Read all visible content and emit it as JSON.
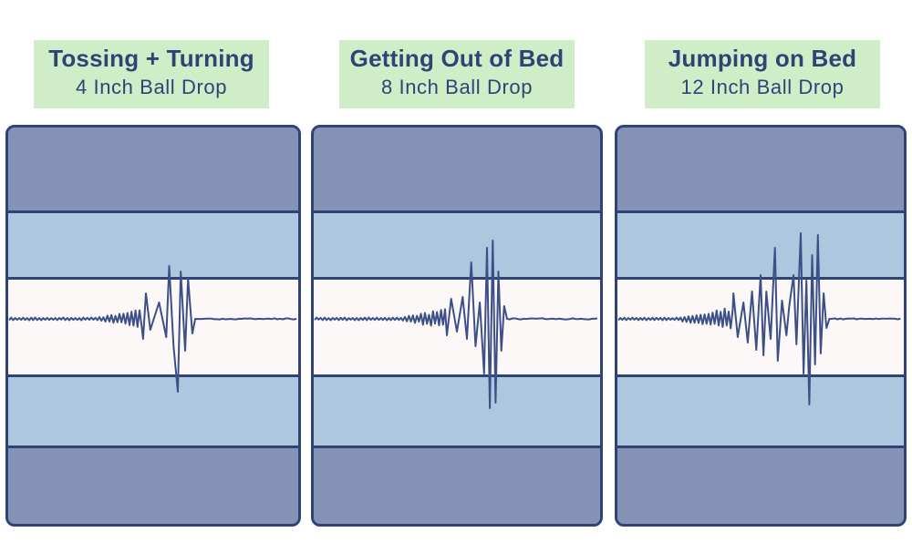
{
  "panels": [
    {
      "title": "Tossing + Turning",
      "subtitle": "4 Inch Ball Drop",
      "wave": {
        "noise_amp": 1.5,
        "ramp_start": 0.3,
        "ramp_end": 0.46,
        "ramp_amp": 9,
        "spikes": [
          {
            "pos": 0.465,
            "amp": -22
          },
          {
            "pos": 0.475,
            "amp": 28
          },
          {
            "pos": 0.49,
            "amp": -12
          },
          {
            "pos": 0.52,
            "amp": 18
          },
          {
            "pos": 0.545,
            "amp": -20
          },
          {
            "pos": 0.555,
            "amp": 58
          },
          {
            "pos": 0.57,
            "amp": -30
          },
          {
            "pos": 0.585,
            "amp": -80
          },
          {
            "pos": 0.595,
            "amp": 52
          },
          {
            "pos": 0.61,
            "amp": -35
          },
          {
            "pos": 0.62,
            "amp": 44
          },
          {
            "pos": 0.635,
            "amp": -16
          }
        ],
        "settle": 0.645
      }
    },
    {
      "title": "Getting Out of Bed",
      "subtitle": "8 Inch Ball Drop",
      "wave": {
        "noise_amp": 1.5,
        "ramp_start": 0.3,
        "ramp_end": 0.46,
        "ramp_amp": 10,
        "spikes": [
          {
            "pos": 0.465,
            "amp": -18
          },
          {
            "pos": 0.48,
            "amp": 22
          },
          {
            "pos": 0.5,
            "amp": -14
          },
          {
            "pos": 0.52,
            "amp": 24
          },
          {
            "pos": 0.535,
            "amp": -22
          },
          {
            "pos": 0.55,
            "amp": 62
          },
          {
            "pos": 0.565,
            "amp": -30
          },
          {
            "pos": 0.58,
            "amp": 18
          },
          {
            "pos": 0.595,
            "amp": -60
          },
          {
            "pos": 0.605,
            "amp": 78
          },
          {
            "pos": 0.615,
            "amp": -98
          },
          {
            "pos": 0.625,
            "amp": 86
          },
          {
            "pos": 0.635,
            "amp": -92
          },
          {
            "pos": 0.645,
            "amp": 52
          },
          {
            "pos": 0.655,
            "amp": -35
          },
          {
            "pos": 0.665,
            "amp": 14
          }
        ],
        "settle": 0.675
      }
    },
    {
      "title": "Jumping on Bed",
      "subtitle": "12 Inch Ball Drop",
      "wave": {
        "noise_amp": 1.5,
        "ramp_start": 0.2,
        "ramp_end": 0.4,
        "ramp_amp": 12,
        "spikes": [
          {
            "pos": 0.405,
            "amp": 28
          },
          {
            "pos": 0.42,
            "amp": -20
          },
          {
            "pos": 0.44,
            "amp": 18
          },
          {
            "pos": 0.455,
            "amp": -26
          },
          {
            "pos": 0.47,
            "amp": 30
          },
          {
            "pos": 0.485,
            "amp": -34
          },
          {
            "pos": 0.5,
            "amp": 48
          },
          {
            "pos": 0.51,
            "amp": -40
          },
          {
            "pos": 0.52,
            "amp": 30
          },
          {
            "pos": 0.535,
            "amp": -22
          },
          {
            "pos": 0.55,
            "amp": 78
          },
          {
            "pos": 0.56,
            "amp": -46
          },
          {
            "pos": 0.575,
            "amp": 20
          },
          {
            "pos": 0.59,
            "amp": -18
          },
          {
            "pos": 0.6,
            "amp": 14
          },
          {
            "pos": 0.615,
            "amp": 48
          },
          {
            "pos": 0.625,
            "amp": -28
          },
          {
            "pos": 0.64,
            "amp": 94
          },
          {
            "pos": 0.65,
            "amp": -60
          },
          {
            "pos": 0.66,
            "amp": 42
          },
          {
            "pos": 0.67,
            "amp": -94
          },
          {
            "pos": 0.68,
            "amp": 70
          },
          {
            "pos": 0.69,
            "amp": -50
          },
          {
            "pos": 0.7,
            "amp": 92
          },
          {
            "pos": 0.71,
            "amp": -38
          },
          {
            "pos": 0.72,
            "amp": 28
          },
          {
            "pos": 0.73,
            "amp": -10
          }
        ],
        "settle": 0.74
      }
    }
  ],
  "colors": {
    "label_bg": "#cfeec8",
    "text": "#2f4377",
    "outer_band": "#8492b6",
    "mid_band": "#adc8de",
    "center_band": "#fcf8f8",
    "line": "#3c4f86"
  }
}
